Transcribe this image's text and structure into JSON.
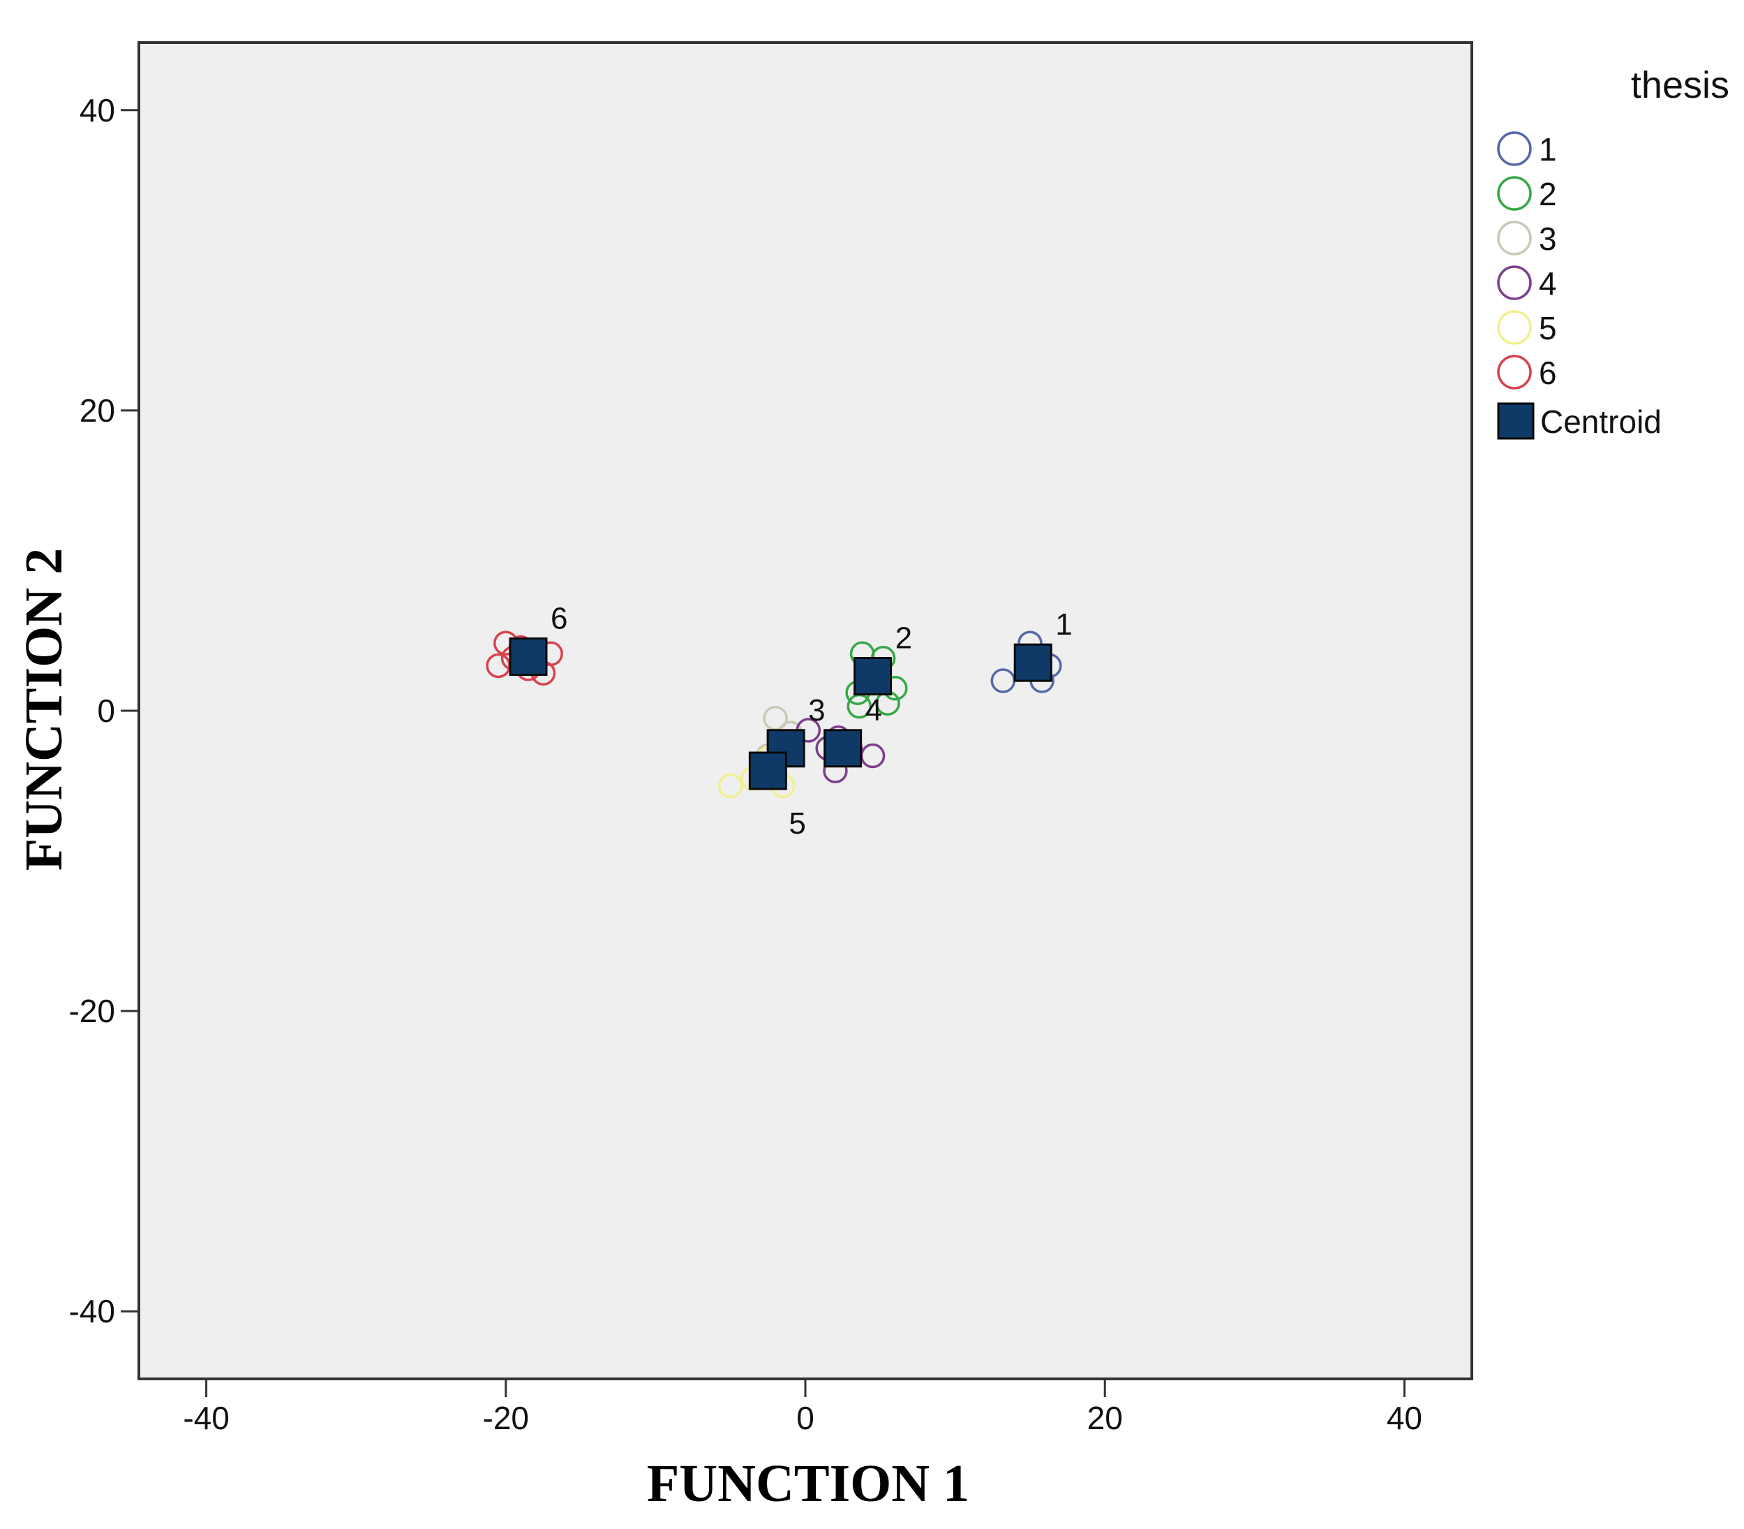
{
  "chart_data": {
    "type": "scatter",
    "xlabel": "FUNCTION 1",
    "ylabel": "FUNCTION 2",
    "xlim": [
      -44.5,
      44.5
    ],
    "ylim": [
      -44.5,
      44.5
    ],
    "xticks": [
      -40,
      -20,
      0,
      20,
      40
    ],
    "yticks": [
      -40,
      -20,
      0,
      20,
      40
    ],
    "grid": false,
    "legend": {
      "title": "thesis",
      "placement": "right",
      "centroid_label": "Centroid"
    },
    "colors": {
      "plot_background": "#efefef",
      "centroid": "#0f3a68"
    },
    "series": [
      {
        "name": "1",
        "color": "#5468a8",
        "points": [
          [
            15,
            4.5
          ],
          [
            13.2,
            2
          ],
          [
            15.8,
            2
          ],
          [
            16.3,
            3
          ],
          [
            15.5,
            3.2
          ]
        ]
      },
      {
        "name": "2",
        "color": "#34a845",
        "points": [
          [
            3.8,
            3.8
          ],
          [
            5.2,
            3.5
          ],
          [
            3.5,
            1.2
          ],
          [
            6,
            1.5
          ],
          [
            3.6,
            0.3
          ],
          [
            5.5,
            0.5
          ],
          [
            4.5,
            2.2
          ]
        ]
      },
      {
        "name": "3",
        "color": "#c9c9b8",
        "points": [
          [
            -2,
            -0.5
          ],
          [
            -1,
            -1.5
          ],
          [
            -2.5,
            -3
          ]
        ]
      },
      {
        "name": "4",
        "color": "#7b3f8c",
        "points": [
          [
            0.2,
            -1.3
          ],
          [
            1.5,
            -2.5
          ],
          [
            2,
            -4
          ],
          [
            4.5,
            -3
          ],
          [
            2.2,
            -1.8
          ],
          [
            3,
            -2.5
          ]
        ]
      },
      {
        "name": "5",
        "color": "#f2ef8f",
        "points": [
          [
            -5,
            -5
          ],
          [
            -3.5,
            -4.5
          ],
          [
            -1.5,
            -5
          ],
          [
            -2.5,
            -3.2
          ]
        ]
      },
      {
        "name": "6",
        "color": "#d6424e",
        "points": [
          [
            -20,
            4.5
          ],
          [
            -19,
            4.2
          ],
          [
            -17,
            3.8
          ],
          [
            -20.5,
            3
          ],
          [
            -17.5,
            2.5
          ],
          [
            -18.5,
            2.8
          ],
          [
            -19.5,
            3.5
          ]
        ]
      }
    ],
    "centroids": [
      {
        "label": "1",
        "x": 15.2,
        "y": 3.2,
        "label_pos": "top-right"
      },
      {
        "label": "2",
        "x": 4.5,
        "y": 2.3,
        "label_pos": "top-right"
      },
      {
        "label": "3",
        "x": -1.3,
        "y": -2.5,
        "label_pos": "top-right"
      },
      {
        "label": "4",
        "x": 2.5,
        "y": -2.5,
        "label_pos": "top-right"
      },
      {
        "label": "5",
        "x": -2.5,
        "y": -4,
        "label_pos": "bottom-right"
      },
      {
        "label": "6",
        "x": -18.5,
        "y": 3.6,
        "label_pos": "top-right"
      }
    ]
  }
}
